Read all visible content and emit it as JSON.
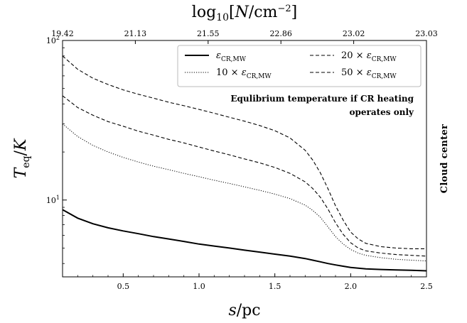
{
  "chart_data": {
    "type": "line",
    "xlabel": "s/pc",
    "ylabel": "T_eq/K",
    "top_xlabel": "log10[N/cm^-2]",
    "xlim": [
      0.1,
      2.5
    ],
    "ylim": [
      3.3,
      100
    ],
    "yscale": "log",
    "x_ticks": [
      0.5,
      1.0,
      1.5,
      2.0,
      2.5
    ],
    "x_tick_labels": [
      "0.5",
      "1.0",
      "1.5",
      "2.0",
      "2.5"
    ],
    "y_ticks": [
      10,
      100
    ],
    "y_tick_labels": [
      "10^1",
      "10^2"
    ],
    "top_ticks": [
      0.1,
      0.58,
      1.06,
      1.54,
      2.02,
      2.5
    ],
    "top_tick_labels": [
      "19.42",
      "21.13",
      "21.55",
      "22.86",
      "23.02",
      "23.03"
    ],
    "legend_placement": "top-right",
    "grid": false,
    "annotation": [
      "Equlibrium temperature if CR heating",
      "operates only"
    ],
    "side_label": "Cloud center",
    "x": [
      0.1,
      0.2,
      0.3,
      0.4,
      0.5,
      0.6,
      0.7,
      0.8,
      0.9,
      1.0,
      1.1,
      1.2,
      1.3,
      1.4,
      1.5,
      1.6,
      1.7,
      1.75,
      1.8,
      1.85,
      1.9,
      1.95,
      2.0,
      2.05,
      2.1,
      2.2,
      2.3,
      2.4,
      2.5
    ],
    "series": [
      {
        "label": "εCR,MW",
        "style": "solid",
        "values": [
          8.7,
          7.7,
          7.1,
          6.7,
          6.4,
          6.15,
          5.9,
          5.7,
          5.5,
          5.3,
          5.15,
          5.0,
          4.85,
          4.72,
          4.58,
          4.45,
          4.3,
          4.2,
          4.1,
          4.0,
          3.92,
          3.85,
          3.78,
          3.74,
          3.7,
          3.67,
          3.65,
          3.63,
          3.6
        ]
      },
      {
        "label": "10 × εCR,MW",
        "style": "dotted",
        "values": [
          30,
          25,
          22,
          20,
          18.5,
          17.3,
          16.3,
          15.5,
          14.7,
          14.0,
          13.3,
          12.7,
          12.1,
          11.5,
          10.9,
          10.2,
          9.3,
          8.6,
          7.8,
          6.8,
          5.9,
          5.3,
          4.9,
          4.65,
          4.5,
          4.35,
          4.25,
          4.2,
          4.15
        ]
      },
      {
        "label": "20 × εCR,MW",
        "style": "dashed",
        "values": [
          45,
          38,
          34,
          31,
          29,
          27,
          25.5,
          24,
          22.8,
          21.5,
          20.3,
          19.2,
          18.1,
          17.1,
          16.0,
          14.7,
          13.0,
          11.8,
          10.4,
          8.8,
          7.2,
          6.1,
          5.4,
          5.0,
          4.8,
          4.65,
          4.55,
          4.5,
          4.45
        ]
      },
      {
        "label": "50 × εCR,MW",
        "style": "dashed",
        "values": [
          80,
          66,
          58,
          53,
          49,
          46,
          43.5,
          41,
          39,
          37,
          35,
          33,
          31.2,
          29.3,
          27.2,
          24.5,
          20.5,
          17.8,
          14.8,
          11.8,
          9.2,
          7.5,
          6.3,
          5.7,
          5.35,
          5.1,
          5.0,
          4.95,
          4.95
        ]
      }
    ]
  }
}
